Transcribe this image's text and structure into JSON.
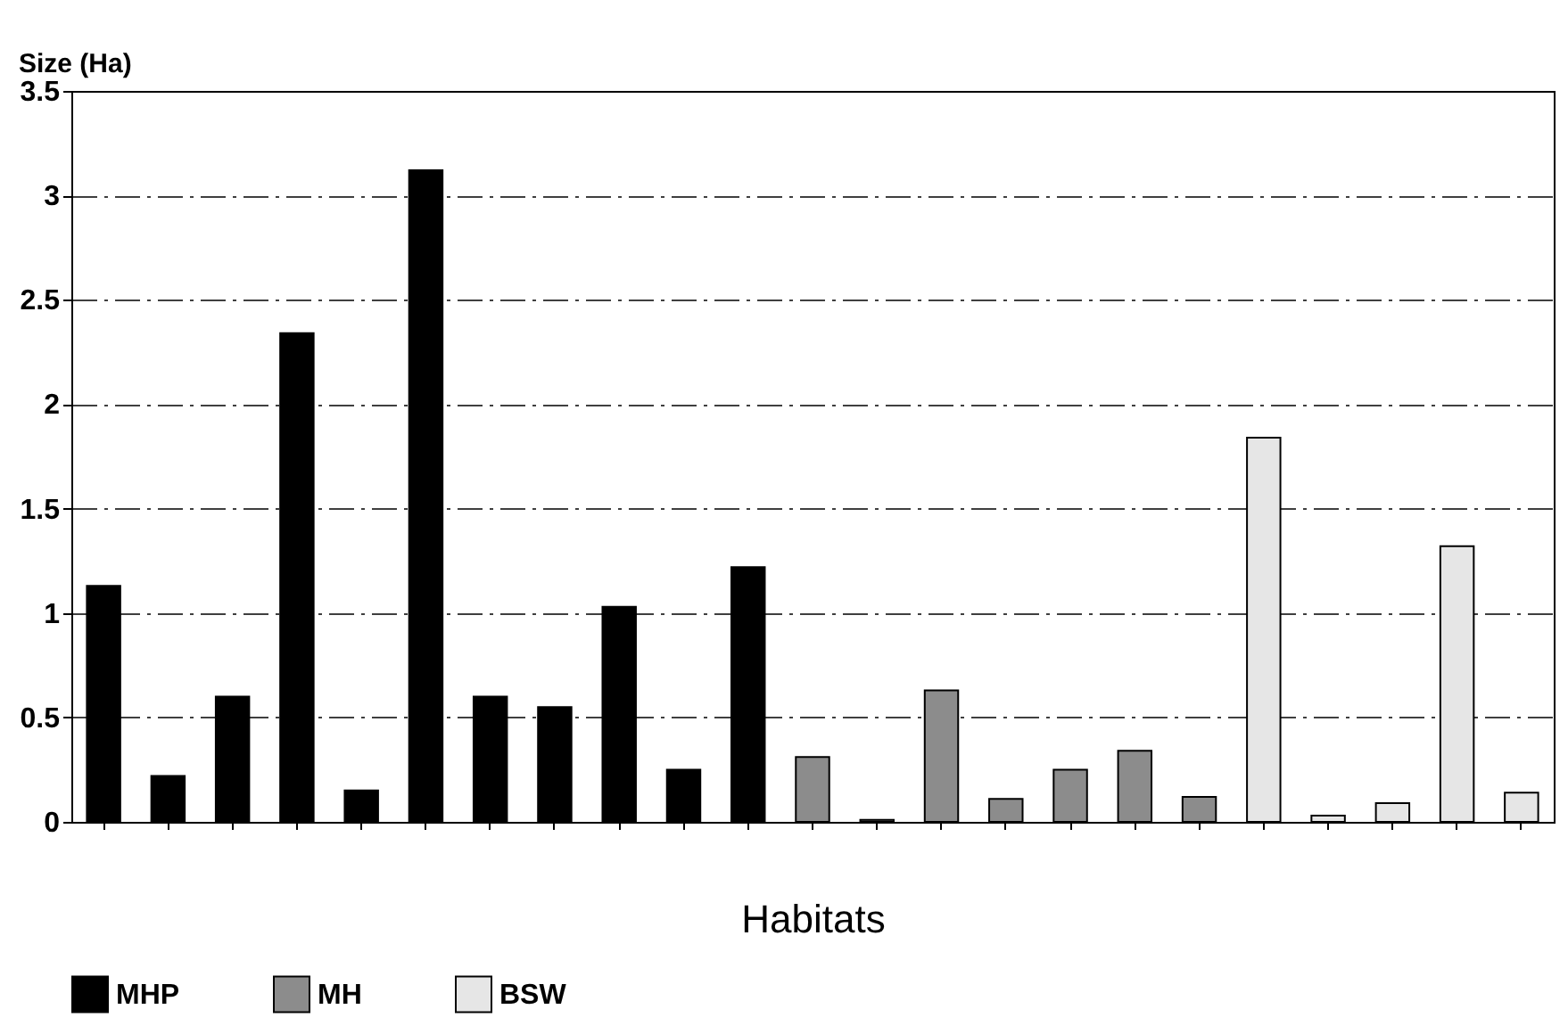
{
  "chart_data": {
    "type": "bar",
    "xlabel": "Habitats",
    "ylabel": "Size (Ha)",
    "categories": [
      null,
      null,
      null,
      null,
      null,
      null,
      null,
      null,
      null,
      null,
      null,
      null,
      null,
      null,
      null,
      null,
      null,
      null,
      null,
      null,
      null,
      null,
      null
    ],
    "series": [
      {
        "name": "MHP",
        "color": "#000000",
        "values": [
          1.13,
          0.22,
          0.6,
          2.34,
          0.15,
          3.12,
          0.6,
          0.55,
          1.03,
          0.25,
          1.22,
          null,
          null,
          null,
          null,
          null,
          null,
          null,
          null,
          null,
          null,
          null,
          null
        ]
      },
      {
        "name": "MH",
        "color": "#8c8c8c",
        "values": [
          null,
          null,
          null,
          null,
          null,
          null,
          null,
          null,
          null,
          null,
          null,
          0.31,
          0.01,
          0.63,
          0.11,
          0.25,
          0.34,
          0.12,
          null,
          null,
          null,
          null,
          null
        ]
      },
      {
        "name": "BSW",
        "color": "#e6e6e6",
        "values": [
          null,
          null,
          null,
          null,
          null,
          null,
          null,
          null,
          null,
          null,
          null,
          null,
          null,
          null,
          null,
          null,
          null,
          null,
          1.84,
          0.03,
          0.09,
          1.32,
          0.14
        ]
      }
    ],
    "ylim": [
      0,
      3.5
    ],
    "yticks": [
      0,
      0.5,
      1,
      1.5,
      2,
      2.5,
      3,
      3.5
    ],
    "grid": "y",
    "legend": "bottom"
  }
}
